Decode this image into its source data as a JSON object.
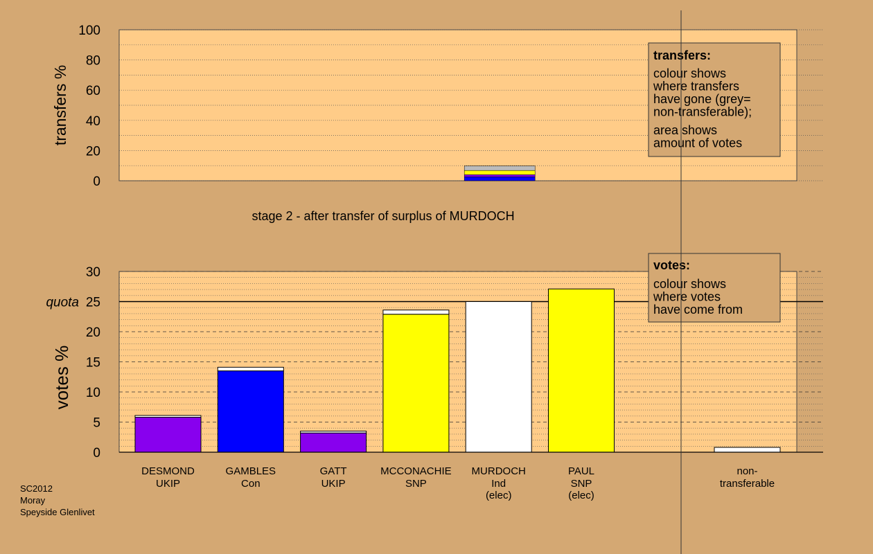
{
  "colors": {
    "background": "#d4a873",
    "plot": "#ffcc88",
    "UKIP": "#8800ee",
    "Con": "#0000ff",
    "SNP": "#ffff00",
    "Ind": "#ffffff",
    "non_transferable": "#bbbbbb"
  },
  "chart_data": [
    {
      "type": "bar",
      "name": "transfers",
      "ylabel": "transfers %",
      "ylim": [
        0,
        100
      ],
      "yticks": [
        0,
        20,
        40,
        60,
        80,
        100
      ],
      "caption": "stage 2 - after transfer of surplus of MURDOCH",
      "stacked_transfer_bar": {
        "category": "MURDOCH",
        "segments": [
          {
            "to": "GAMBLES",
            "value": 2.6,
            "color": "#0000ff"
          },
          {
            "to": "DESMOND",
            "value": 1.4,
            "color": "#8800ee"
          },
          {
            "to": "MCCONACHIE",
            "value": 2.8,
            "color": "#ffff00"
          },
          {
            "to": "non-transferable",
            "value": 3.0,
            "color": "#bbbbbb"
          }
        ]
      },
      "legend": {
        "title": "transfers:",
        "lines": [
          "colour shows",
          "where transfers",
          "have gone (grey=",
          "non-transferable);"
        ],
        "lines2": [
          "area shows",
          "amount of votes"
        ],
        "placement": "top-right"
      }
    },
    {
      "type": "bar",
      "name": "votes",
      "ylabel": "votes %",
      "ylim": [
        0,
        30
      ],
      "yticks": [
        0,
        5,
        10,
        15,
        20,
        25,
        30
      ],
      "quota": {
        "label": "quota",
        "value": 25
      },
      "categories": [
        {
          "name": "DESMOND",
          "party": "UKIP",
          "note": "",
          "base": 5.8,
          "transfer": 0.3,
          "color": "#8800ee"
        },
        {
          "name": "GAMBLES",
          "party": "Con",
          "note": "",
          "base": 13.5,
          "transfer": 0.6,
          "color": "#0000ff"
        },
        {
          "name": "GATT",
          "party": "UKIP",
          "note": "",
          "base": 3.2,
          "transfer": 0.3,
          "color": "#8800ee"
        },
        {
          "name": "MCCONACHIE",
          "party": "SNP",
          "note": "",
          "base": 22.9,
          "transfer": 0.7,
          "color": "#ffff00"
        },
        {
          "name": "MURDOCH",
          "party": "Ind",
          "note": "(elec)",
          "base": 25.0,
          "transfer": 0,
          "color": "#ffffff"
        },
        {
          "name": "PAUL",
          "party": "SNP",
          "note": "(elec)",
          "base": 27.1,
          "transfer": 0,
          "color": "#ffff00"
        }
      ],
      "non_transferable": {
        "line1": "non-",
        "line2": "transferable",
        "value": 0.8,
        "color": "#ffffff"
      },
      "legend": {
        "title": "votes:",
        "lines": [
          "colour shows",
          "where votes",
          "have come from"
        ],
        "placement": "top-right"
      }
    }
  ],
  "footer": {
    "line1": "SC2012",
    "line2": "Moray",
    "line3": "Speyside Glenlivet"
  }
}
